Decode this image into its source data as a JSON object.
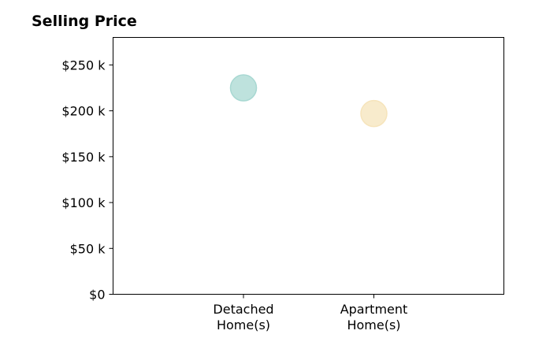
{
  "chart_data": {
    "type": "scatter",
    "title": "Selling Price",
    "xlabel": "",
    "ylabel": "",
    "ylim": [
      0,
      280000
    ],
    "yticks": [
      {
        "value": 0,
        "label": "$0"
      },
      {
        "value": 50000,
        "label": "$50 k"
      },
      {
        "value": 100000,
        "label": "$100 k"
      },
      {
        "value": 150000,
        "label": "$150 k"
      },
      {
        "value": 200000,
        "label": "$200 k"
      },
      {
        "value": 250000,
        "label": "$250 k"
      }
    ],
    "categories": [
      {
        "lines": [
          "Detached",
          "Home(s)"
        ]
      },
      {
        "lines": [
          "Apartment",
          "Home(s)"
        ]
      }
    ],
    "points": [
      {
        "category_index": 0,
        "y": 225000,
        "color": "#a8d8d2"
      },
      {
        "category_index": 1,
        "y": 197000,
        "color": "#f6e4bb"
      }
    ],
    "grid": false,
    "legend": "none"
  }
}
